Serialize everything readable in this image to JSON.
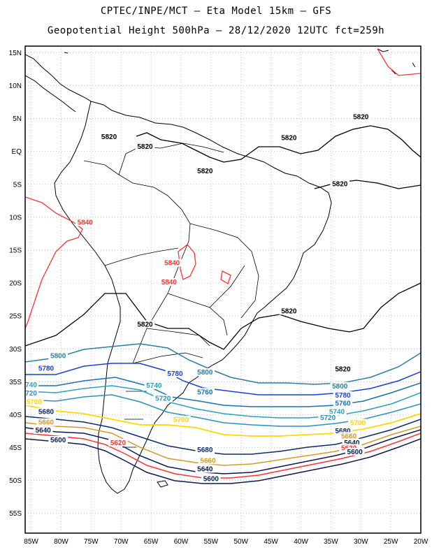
{
  "title_line1": "CPTEC/INPE/MCT –  Eta Model 15km – GFS",
  "title_line2": "Geopotential Height 500hPa – 28/12/2020 12UTC fct=259h",
  "lat_labels": [
    "15N",
    "10N",
    "5N",
    "EQ",
    "5S",
    "10S",
    "15S",
    "20S",
    "25S",
    "30S",
    "35S",
    "40S",
    "45S",
    "50S",
    "55S"
  ],
  "lon_labels": [
    "85W",
    "80W",
    "75W",
    "70W",
    "65W",
    "60W",
    "55W",
    "50W",
    "45W",
    "40W",
    "35W",
    "30W",
    "25W",
    "20W"
  ],
  "contour_labels": [
    {
      "text": "5820",
      "color": "#000000",
      "lon": -72.0,
      "lat": 2.0
    },
    {
      "text": "5820",
      "color": "#000000",
      "lon": -66.0,
      "lat": 0.5
    },
    {
      "text": "5820",
      "color": "#000000",
      "lon": -56.0,
      "lat": -3.2
    },
    {
      "text": "5820",
      "color": "#000000",
      "lon": -42.0,
      "lat": 1.8
    },
    {
      "text": "5820",
      "color": "#000000",
      "lon": -30.0,
      "lat": 5.0
    },
    {
      "text": "5820",
      "color": "#000000",
      "lon": -33.5,
      "lat": -5.2
    },
    {
      "text": "5820",
      "color": "#000000",
      "lon": -42.0,
      "lat": -24.5
    },
    {
      "text": "5820",
      "color": "#000000",
      "lon": -66.0,
      "lat": -26.5
    },
    {
      "text": "5820",
      "color": "#000000",
      "lon": -33.0,
      "lat": -33.3
    },
    {
      "text": "5840",
      "color": "#ff3333",
      "lon": -76.0,
      "lat": -11.0
    },
    {
      "text": "5840",
      "color": "#ff3333",
      "lon": -61.5,
      "lat": -17.2
    },
    {
      "text": "5840",
      "color": "#ff3333",
      "lon": -62.0,
      "lat": -20.1
    },
    {
      "text": "5800",
      "color": "#2a7f9f",
      "lon": -80.5,
      "lat": -31.3
    },
    {
      "text": "5800",
      "color": "#2a7f9f",
      "lon": -56.0,
      "lat": -33.8
    },
    {
      "text": "5800",
      "color": "#2a7f9f",
      "lon": -33.5,
      "lat": -35.9
    },
    {
      "text": "5780",
      "color": "#1a3fd8",
      "lon": -82.5,
      "lat": -33.2
    },
    {
      "text": "5780",
      "color": "#1a3fd8",
      "lon": -61.0,
      "lat": -34.0
    },
    {
      "text": "5780",
      "color": "#1a3fd8",
      "lon": -33.0,
      "lat": -37.3
    },
    {
      "text": "5760",
      "color": "#1a70b0",
      "lon": -56.0,
      "lat": -36.8
    },
    {
      "text": "5760",
      "color": "#1a70b0",
      "lon": -33.0,
      "lat": -38.5
    },
    {
      "text": "740",
      "color": "#2aa0c0",
      "lon": -85.0,
      "lat": -35.7
    },
    {
      "text": "5740",
      "color": "#2aa0c0",
      "lon": -64.5,
      "lat": -35.8
    },
    {
      "text": "5740",
      "color": "#2aa0c0",
      "lon": -34.0,
      "lat": -39.8
    },
    {
      "text": "720",
      "color": "#2a90c0",
      "lon": -85.0,
      "lat": -37.0
    },
    {
      "text": "5720",
      "color": "#2a90c0",
      "lon": -63.0,
      "lat": -37.8
    },
    {
      "text": "5720",
      "color": "#2a90c0",
      "lon": -35.5,
      "lat": -40.7
    },
    {
      "text": "5700",
      "color": "#ffd800",
      "lon": -84.5,
      "lat": -38.3
    },
    {
      "text": "5700",
      "color": "#ffd800",
      "lon": -60.0,
      "lat": -41.0
    },
    {
      "text": "5700",
      "color": "#ffd800",
      "lon": -30.5,
      "lat": -41.5
    },
    {
      "text": "5680",
      "color": "#0a2a6e",
      "lon": -82.5,
      "lat": -39.8
    },
    {
      "text": "5680",
      "color": "#0a2a6e",
      "lon": -56.0,
      "lat": -45.6
    },
    {
      "text": "5680",
      "color": "#0a2a6e",
      "lon": -33.0,
      "lat": -42.7
    },
    {
      "text": "5660",
      "color": "#d39a2a",
      "lon": -82.5,
      "lat": -41.4
    },
    {
      "text": "5660",
      "color": "#d39a2a",
      "lon": -55.5,
      "lat": -47.2
    },
    {
      "text": "5660",
      "color": "#d39a2a",
      "lon": -32.0,
      "lat": -43.5
    },
    {
      "text": "5640",
      "color": "#0a1a4e",
      "lon": -83.0,
      "lat": -42.6
    },
    {
      "text": "5640",
      "color": "#0a1a4e",
      "lon": -56.0,
      "lat": -48.5
    },
    {
      "text": "5640",
      "color": "#0a1a4e",
      "lon": -31.5,
      "lat": -44.5
    },
    {
      "text": "5620",
      "color": "#ff3333",
      "lon": -70.5,
      "lat": -44.5
    },
    {
      "text": "5620",
      "color": "#ff3333",
      "lon": -32.0,
      "lat": -45.3
    },
    {
      "text": "5600",
      "color": "#0a1a4e",
      "lon": -80.5,
      "lat": -44.1
    },
    {
      "text": "5600",
      "color": "#0a1a4e",
      "lon": -55.0,
      "lat": -50.0
    },
    {
      "text": "5600",
      "color": "#0a1a4e",
      "lon": -31.0,
      "lat": -45.9
    }
  ]
}
